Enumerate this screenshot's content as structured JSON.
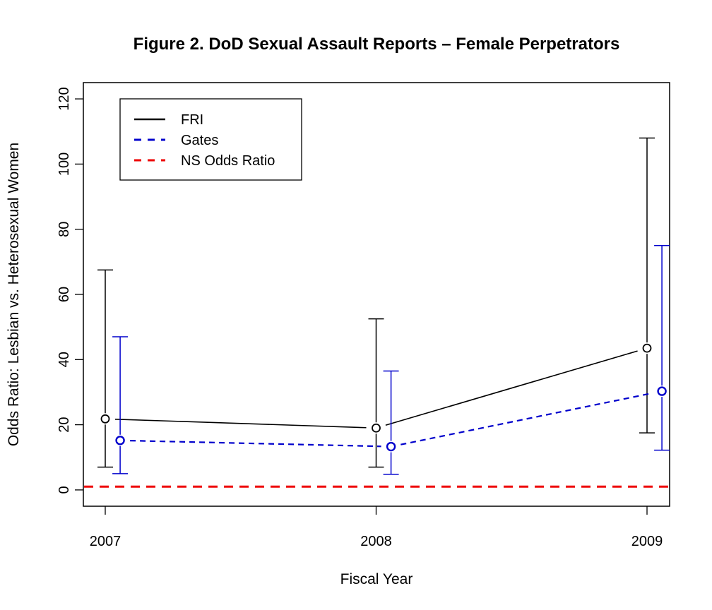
{
  "chart_data": {
    "type": "line",
    "title": "Figure 2. DoD Sexual Assault Reports – Female Perpetrators",
    "xlabel": "Fiscal Year",
    "ylabel": "Odds Ratio: Lesbian vs. Heterosexual Women",
    "categories": [
      "2007",
      "2008",
      "2009"
    ],
    "ylim": [
      -5,
      125
    ],
    "yticks": [
      0,
      20,
      40,
      60,
      80,
      100,
      120
    ],
    "grid": false,
    "legend_position": "top-left",
    "series": [
      {
        "name": "FRI",
        "color": "#000000",
        "line_style": "solid",
        "x_offset": 0,
        "values": [
          21.8,
          19.0,
          43.5
        ],
        "ci_lower": [
          7.0,
          7.0,
          17.5
        ],
        "ci_upper": [
          67.5,
          52.5,
          108.0
        ]
      },
      {
        "name": "Gates",
        "color": "#0000cc",
        "line_style": "dashed",
        "x_offset": 0.055,
        "values": [
          15.2,
          13.3,
          30.3
        ],
        "ci_lower": [
          5.0,
          4.8,
          12.2
        ],
        "ci_upper": [
          47.0,
          36.5,
          75.0
        ]
      }
    ],
    "reference_line": {
      "name": "NS Odds Ratio",
      "value": 1,
      "color": "#ee0000",
      "line_style": "dashed"
    }
  }
}
